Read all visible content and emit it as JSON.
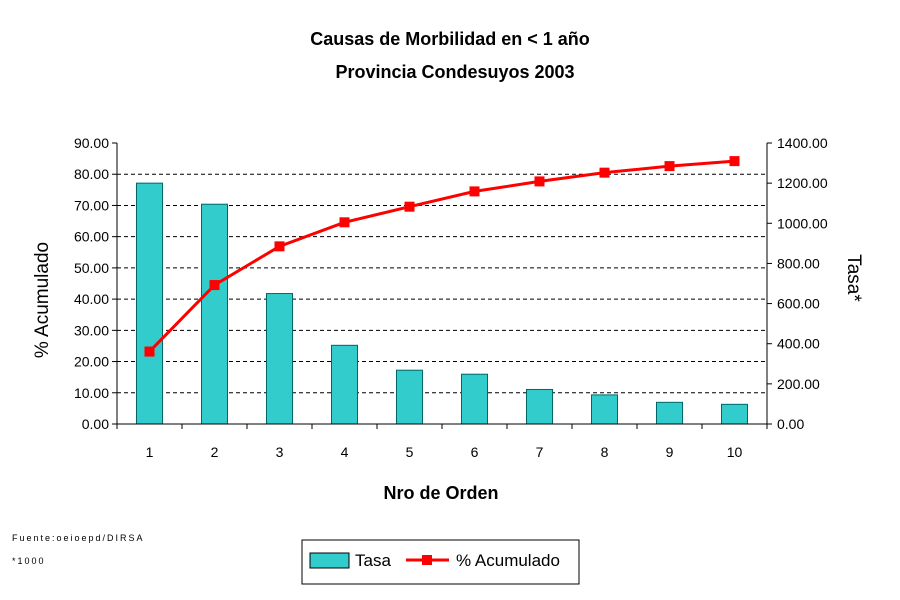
{
  "chart_data": {
    "type": "bar",
    "title": "Causas de Morbilidad en < 1 año",
    "subtitle": "Provincia Condesuyos 2003",
    "xlabel": "Nro de Orden",
    "ylabel_left": "% Acumulado",
    "ylabel_right": "Tasa*",
    "categories": [
      "1",
      "2",
      "3",
      "4",
      "5",
      "6",
      "7",
      "8",
      "9",
      "10"
    ],
    "left_axis": {
      "ylim": [
        0,
        90
      ],
      "ticks": [
        "0.00",
        "10.00",
        "20.00",
        "30.00",
        "40.00",
        "50.00",
        "60.00",
        "70.00",
        "80.00",
        "90.00"
      ]
    },
    "right_axis": {
      "ylim": [
        0,
        1400
      ],
      "ticks": [
        "0.00",
        "200.00",
        "400.00",
        "600.00",
        "800.00",
        "1000.00",
        "1200.00",
        "1400.00"
      ]
    },
    "series": [
      {
        "name": "Tasa",
        "kind": "bar",
        "axis": "right",
        "color": "#33CCCC",
        "values": [
          1200,
          1095,
          650,
          392,
          268,
          248,
          172,
          145,
          108,
          98
        ]
      },
      {
        "name": "% Acumulado",
        "kind": "line",
        "axis": "left",
        "color": "#FF0000",
        "values": [
          23.2,
          44.5,
          56.9,
          64.6,
          69.6,
          74.5,
          77.7,
          80.5,
          82.6,
          84.2
        ]
      }
    ],
    "grid": true,
    "legend_position": "bottom"
  },
  "footnotes": {
    "source": "Fuente:oeioepd/DIRSA",
    "note": "*1000"
  }
}
